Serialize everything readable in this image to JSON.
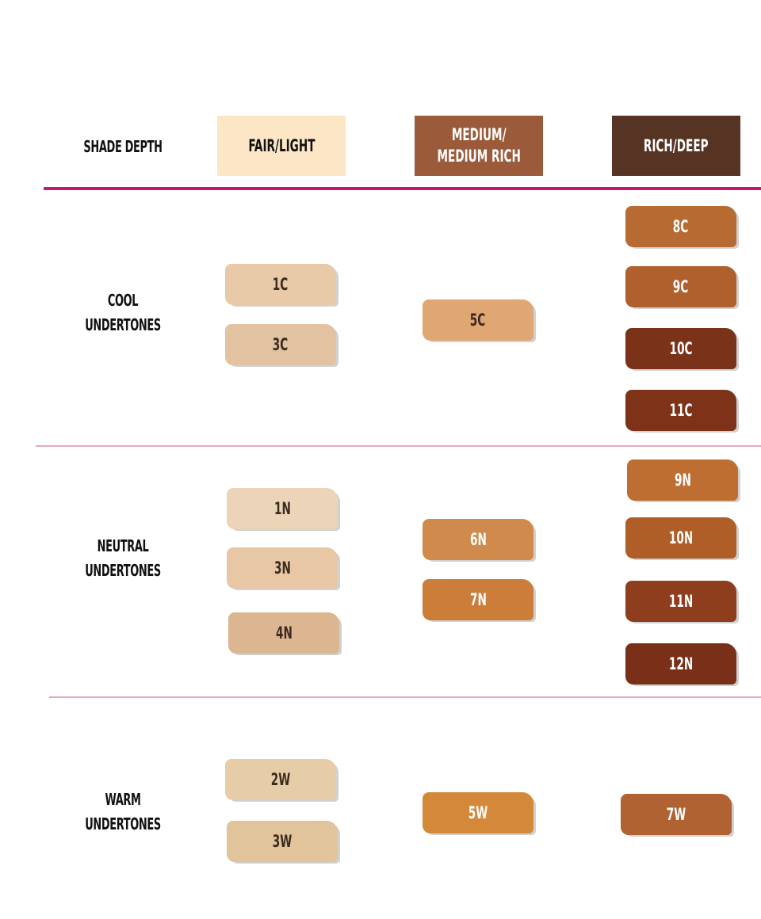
{
  "header": {
    "row_label": "SHADE DEPTH",
    "columns": [
      {
        "label": "FAIR/LIGHT",
        "color": "#fde6c6",
        "text_color": "#111111"
      },
      {
        "label": "MEDIUM/\nMEDIUM RICH",
        "color": "#9b5a3a",
        "text_color": "#ffffff"
      },
      {
        "label": "RICH/DEEP",
        "color": "#563322",
        "text_color": "#ffffff"
      }
    ]
  },
  "accent_color": "#c2187a",
  "rows": [
    {
      "label": "COOL\nUNDERTONES",
      "shades": [
        {
          "name": "1C",
          "color": "#e8c9a8",
          "col": 0
        },
        {
          "name": "3C",
          "color": "#e2c2a0",
          "col": 0
        },
        {
          "name": "5C",
          "color": "#e0a673",
          "col": 1
        },
        {
          "name": "8C",
          "color": "#b86a33",
          "col": 2
        },
        {
          "name": "9C",
          "color": "#b0602c",
          "col": 2
        },
        {
          "name": "10C",
          "color": "#7a3218",
          "col": 2
        },
        {
          "name": "11C",
          "color": "#7e3319",
          "col": 2
        }
      ]
    },
    {
      "label": "NEUTRAL\nUNDERTONES",
      "shades": [
        {
          "name": "1N",
          "color": "#ecd4b8",
          "col": 0
        },
        {
          "name": "3N",
          "color": "#e8c8a4",
          "col": 0
        },
        {
          "name": "4N",
          "color": "#dcb690",
          "col": 0
        },
        {
          "name": "6N",
          "color": "#cf8a4c",
          "col": 1
        },
        {
          "name": "7N",
          "color": "#cc7d3a",
          "col": 1
        },
        {
          "name": "9N",
          "color": "#bf6e32",
          "col": 2
        },
        {
          "name": "10N",
          "color": "#b05e28",
          "col": 2
        },
        {
          "name": "11N",
          "color": "#8e3e1c",
          "col": 2
        },
        {
          "name": "12N",
          "color": "#7a3018",
          "col": 2
        }
      ]
    },
    {
      "label": "WARM\nUNDERTONES",
      "shades": [
        {
          "name": "2W",
          "color": "#e6cda8",
          "col": 0
        },
        {
          "name": "3W",
          "color": "#e2c49c",
          "col": 0
        },
        {
          "name": "5W",
          "color": "#d4893a",
          "col": 1
        },
        {
          "name": "7W",
          "color": "#b06232",
          "col": 2
        }
      ]
    }
  ]
}
